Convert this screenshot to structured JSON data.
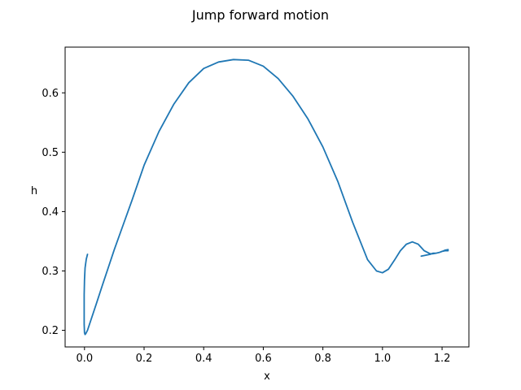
{
  "chart_data": {
    "type": "line",
    "title": "Jump forward motion",
    "xlabel": "x",
    "ylabel": "h",
    "xlim": [
      -0.065,
      1.29
    ],
    "ylim": [
      0.172,
      0.677
    ],
    "xticks": [
      0.0,
      0.2,
      0.4,
      0.6,
      0.8,
      1.0,
      1.2
    ],
    "yticks": [
      0.2,
      0.3,
      0.4,
      0.5,
      0.6
    ],
    "xtick_labels": [
      "0.0",
      "0.2",
      "0.4",
      "0.6",
      "0.8",
      "1.0",
      "1.2"
    ],
    "ytick_labels": [
      "0.2",
      "0.3",
      "0.4",
      "0.5",
      "0.6"
    ],
    "grid": false,
    "series": [
      {
        "color": "#1f77b4",
        "x": [
          0.01,
          0.006,
          0.002,
          0.0,
          -0.001,
          -0.001,
          -0.001,
          0.0,
          0.002,
          0.005,
          0.01,
          0.02,
          0.04,
          0.06,
          0.08,
          0.1,
          0.13,
          0.16,
          0.2,
          0.25,
          0.3,
          0.35,
          0.4,
          0.45,
          0.5,
          0.55,
          0.6,
          0.65,
          0.7,
          0.75,
          0.8,
          0.85,
          0.9,
          0.95,
          0.98,
          1.0,
          1.02,
          1.04,
          1.06,
          1.08,
          1.1,
          1.12,
          1.14,
          1.16,
          1.17,
          1.18,
          1.19,
          1.2,
          1.21,
          1.22,
          1.22,
          1.21,
          1.2,
          1.19,
          1.18,
          1.17,
          1.16,
          1.15,
          1.14,
          1.13
        ],
        "y": [
          0.328,
          0.32,
          0.305,
          0.285,
          0.26,
          0.235,
          0.21,
          0.196,
          0.193,
          0.195,
          0.2,
          0.215,
          0.245,
          0.276,
          0.306,
          0.336,
          0.378,
          0.42,
          0.478,
          0.535,
          0.581,
          0.617,
          0.641,
          0.652,
          0.656,
          0.655,
          0.645,
          0.624,
          0.594,
          0.556,
          0.509,
          0.451,
          0.382,
          0.319,
          0.3,
          0.297,
          0.303,
          0.318,
          0.334,
          0.345,
          0.349,
          0.345,
          0.334,
          0.329,
          0.329,
          0.33,
          0.331,
          0.333,
          0.335,
          0.336,
          0.334,
          0.334,
          0.333,
          0.331,
          0.33,
          0.33,
          0.328,
          0.327,
          0.326,
          0.325
        ]
      }
    ]
  }
}
